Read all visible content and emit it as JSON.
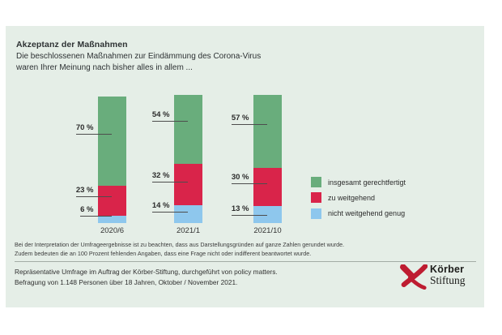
{
  "page": {
    "background": "#ffffff",
    "card_background": "#e5eee7"
  },
  "header": {
    "title": "Akzeptanz der Maßnahmen",
    "subtitle_line1": "Die beschlossenen Maßnahmen zur Eindämmung des Corona-Virus",
    "subtitle_line2": "waren Ihrer Meinung nach bisher alles in allem ..."
  },
  "chart_data": {
    "type": "bar",
    "stacked": true,
    "orientation": "vertical",
    "categories": [
      "2020/6",
      "2021/1",
      "2021/10"
    ],
    "series": [
      {
        "name": "insgesamt gerechtfertigt",
        "color": "#69ad7c",
        "values": [
          70,
          54,
          57
        ]
      },
      {
        "name": "zu weitgehend",
        "color": "#d9244a",
        "values": [
          23,
          32,
          30
        ]
      },
      {
        "name": "nicht weitgehend genug",
        "color": "#8ec7ed",
        "values": [
          6,
          14,
          13
        ]
      }
    ],
    "value_labels": [
      [
        "70 %",
        "23 %",
        "6 %"
      ],
      [
        "54 %",
        "32 %",
        "14 %"
      ],
      [
        "57 %",
        "30 %",
        "13 %"
      ]
    ],
    "unit": "%",
    "ylim": [
      0,
      100
    ],
    "grid": false,
    "legend_position": "right"
  },
  "footnotes": [
    "Bei der Interpretation der Umfrageergebnisse ist zu beachten, dass aus Darstellungsgründen auf ganze Zahlen gerundet wurde.",
    "Zudem bedeuten die an 100 Prozent fehlenden Angaben, dass eine Frage nicht oder indifferent beantwortet wurde."
  ],
  "source": [
    "Repräsentative Umfrage im Auftrag der Körber-Stiftung, durchgeführt von policy matters.",
    "Befragung von 1.148 Personen über 18 Jahren, Oktober / November 2021."
  ],
  "logo": {
    "mark_icon": "koerber-k-mark",
    "line1": "Körber",
    "line2": "Stiftung",
    "mark_color": "#be1c31"
  }
}
